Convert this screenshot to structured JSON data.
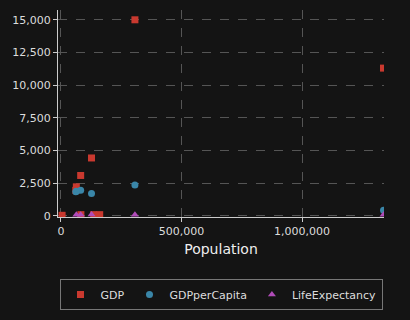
{
  "chart_data": {
    "type": "scatter",
    "x_label": "Population",
    "series": [
      {
        "name": "GDP",
        "color": "#c9392f",
        "marker": "square",
        "x": [
          1338000,
          307000,
          127000,
          82000,
          64000,
          62000,
          83000,
          136000,
          161000,
          5000
        ],
        "values": [
          11300,
          15000,
          4420,
          3080,
          2210,
          1940,
          80,
          80,
          80,
          30
        ]
      },
      {
        "name": "GDPperCapita",
        "color": "#3a86a8",
        "marker": "circle",
        "x": [
          1338000,
          307000,
          127000,
          82000,
          64000,
          62000
        ],
        "values": [
          420,
          2350,
          1700,
          1950,
          1880,
          1830
        ]
      },
      {
        "name": "LifeExpectancy",
        "color": "#b04bb8",
        "marker": "triangle-up",
        "x": [
          1338000,
          307000,
          127000,
          82000,
          64000
        ],
        "values": [
          75,
          78,
          82,
          80,
          81
        ]
      }
    ],
    "xlim": [
      -12000,
      1340000
    ],
    "xticks": [
      0,
      {
        "value": 500000,
        "label": "500,000"
      },
      {
        "value": 1000000,
        "label": "1,000,000"
      }
    ],
    "ylim": [
      -100,
      15750
    ],
    "yticks": [
      0,
      {
        "value": 2500,
        "label": "2,500"
      },
      {
        "value": 5000,
        "label": "5,000"
      },
      {
        "value": 7500,
        "label": "7,500"
      },
      {
        "value": 10000,
        "label": "10,000"
      },
      {
        "value": 12500,
        "label": "12,500"
      },
      {
        "value": 15000,
        "label": "15,000"
      }
    ],
    "grid": true,
    "legend": "bottom"
  }
}
